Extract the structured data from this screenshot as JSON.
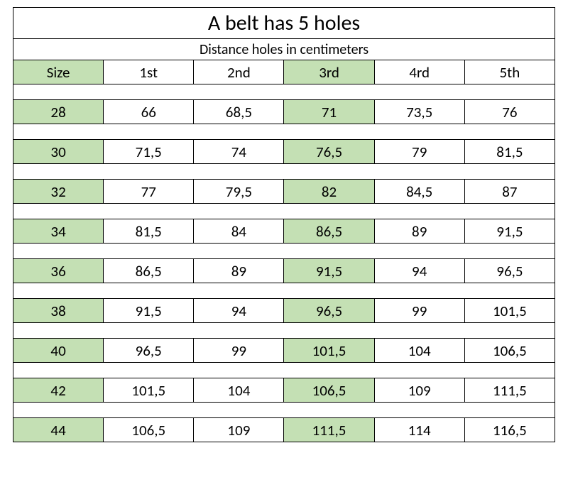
{
  "title": "A belt has 5 holes",
  "subtitle": "Distance holes in centimeters",
  "colors": {
    "highlight": "#c4e0b4",
    "border": "#000000",
    "background": "#ffffff",
    "text": "#000000"
  },
  "typography": {
    "title_fontsize": 30,
    "subtitle_fontsize": 20,
    "header_fontsize": 21,
    "cell_fontsize": 21,
    "font_family": "Calibri, Arial, sans-serif"
  },
  "table": {
    "type": "table",
    "columns": [
      "Size",
      "1st",
      "2nd",
      "3rd",
      "4rd",
      "5th"
    ],
    "highlighted_columns": [
      0,
      3
    ],
    "rows": [
      [
        "28",
        "66",
        "68,5",
        "71",
        "73,5",
        "76"
      ],
      [
        "30",
        "71,5",
        "74",
        "76,5",
        "79",
        "81,5"
      ],
      [
        "32",
        "77",
        "79,5",
        "82",
        "84,5",
        "87"
      ],
      [
        "34",
        "81,5",
        "84",
        "86,5",
        "89",
        "91,5"
      ],
      [
        "36",
        "86,5",
        "89",
        "91,5",
        "94",
        "96,5"
      ],
      [
        "38",
        "91,5",
        "94",
        "96,5",
        "99",
        "101,5"
      ],
      [
        "40",
        "96,5",
        "99",
        "101,5",
        "104",
        "106,5"
      ],
      [
        "42",
        "101,5",
        "104",
        "106,5",
        "109",
        "111,5"
      ],
      [
        "44",
        "106,5",
        "109",
        "111,5",
        "114",
        "116,5"
      ]
    ]
  }
}
